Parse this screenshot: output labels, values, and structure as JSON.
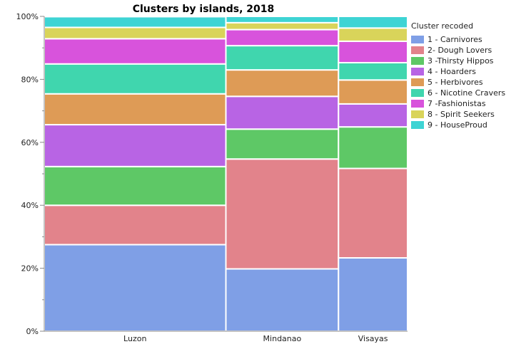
{
  "chart_data": {
    "type": "mosaic",
    "title": "Clusters by islands, 2018",
    "ylabel": "",
    "xlabel": "",
    "ylim": [
      0,
      100
    ],
    "yticks": [
      "0%",
      "20%",
      "40%",
      "60%",
      "80%",
      "100%"
    ],
    "ytick_values": [
      0,
      20,
      40,
      60,
      80,
      100
    ],
    "categories": [
      "Luzon",
      "Mindanao",
      "Visayas"
    ],
    "category_shares": [
      0.5,
      0.31,
      0.19
    ],
    "legend_title": "Cluster recoded",
    "series": [
      {
        "name": "1 - Carnivores",
        "color": "#7f9fe6",
        "values": [
          27.5,
          19.8,
          23.3
        ]
      },
      {
        "name": "2- Dough Lovers",
        "color": "#e2838b",
        "values": [
          12.5,
          34.9,
          28.4
        ]
      },
      {
        "name": "3 -Thirsty Hippos",
        "color": "#5ec866",
        "values": [
          12.3,
          9.5,
          13.2
        ]
      },
      {
        "name": "4 - Hoarders",
        "color": "#b864e4",
        "values": [
          13.3,
          10.4,
          7.3
        ]
      },
      {
        "name": "5 - Herbivores",
        "color": "#de9b56",
        "values": [
          9.8,
          8.4,
          7.6
        ]
      },
      {
        "name": "6 - Nicotine Cravers",
        "color": "#40d6ae",
        "values": [
          9.5,
          7.7,
          5.5
        ]
      },
      {
        "name": "7 -Fashionistas",
        "color": "#d853dc",
        "values": [
          8.0,
          5.1,
          6.8
        ]
      },
      {
        "name": "8 - Spirit Seekers",
        "color": "#d9d45a",
        "values": [
          3.6,
          2.2,
          4.2
        ]
      },
      {
        "name": "9 - HouseProud",
        "color": "#3ed4d4",
        "values": [
          3.4,
          2.0,
          3.7
        ]
      }
    ]
  }
}
